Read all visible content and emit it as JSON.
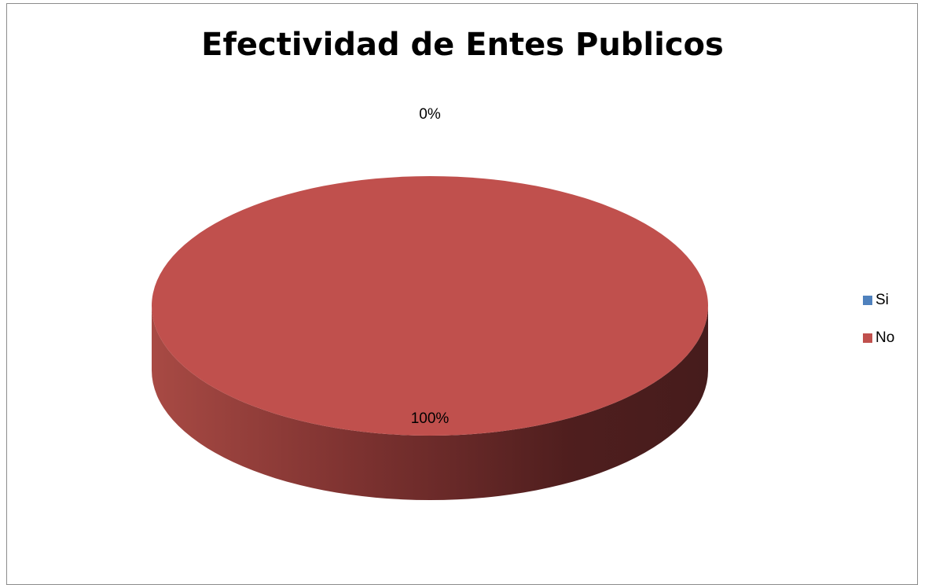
{
  "chart_data": {
    "type": "pie",
    "title": "Efectividad de Entes Publicos",
    "categories": [
      "Si",
      "No"
    ],
    "values": [
      0,
      100
    ],
    "data_labels": [
      "0%",
      "100%"
    ],
    "colors": [
      "#4f81bd",
      "#c0504d"
    ],
    "legend_position": "right",
    "three_d": true
  }
}
